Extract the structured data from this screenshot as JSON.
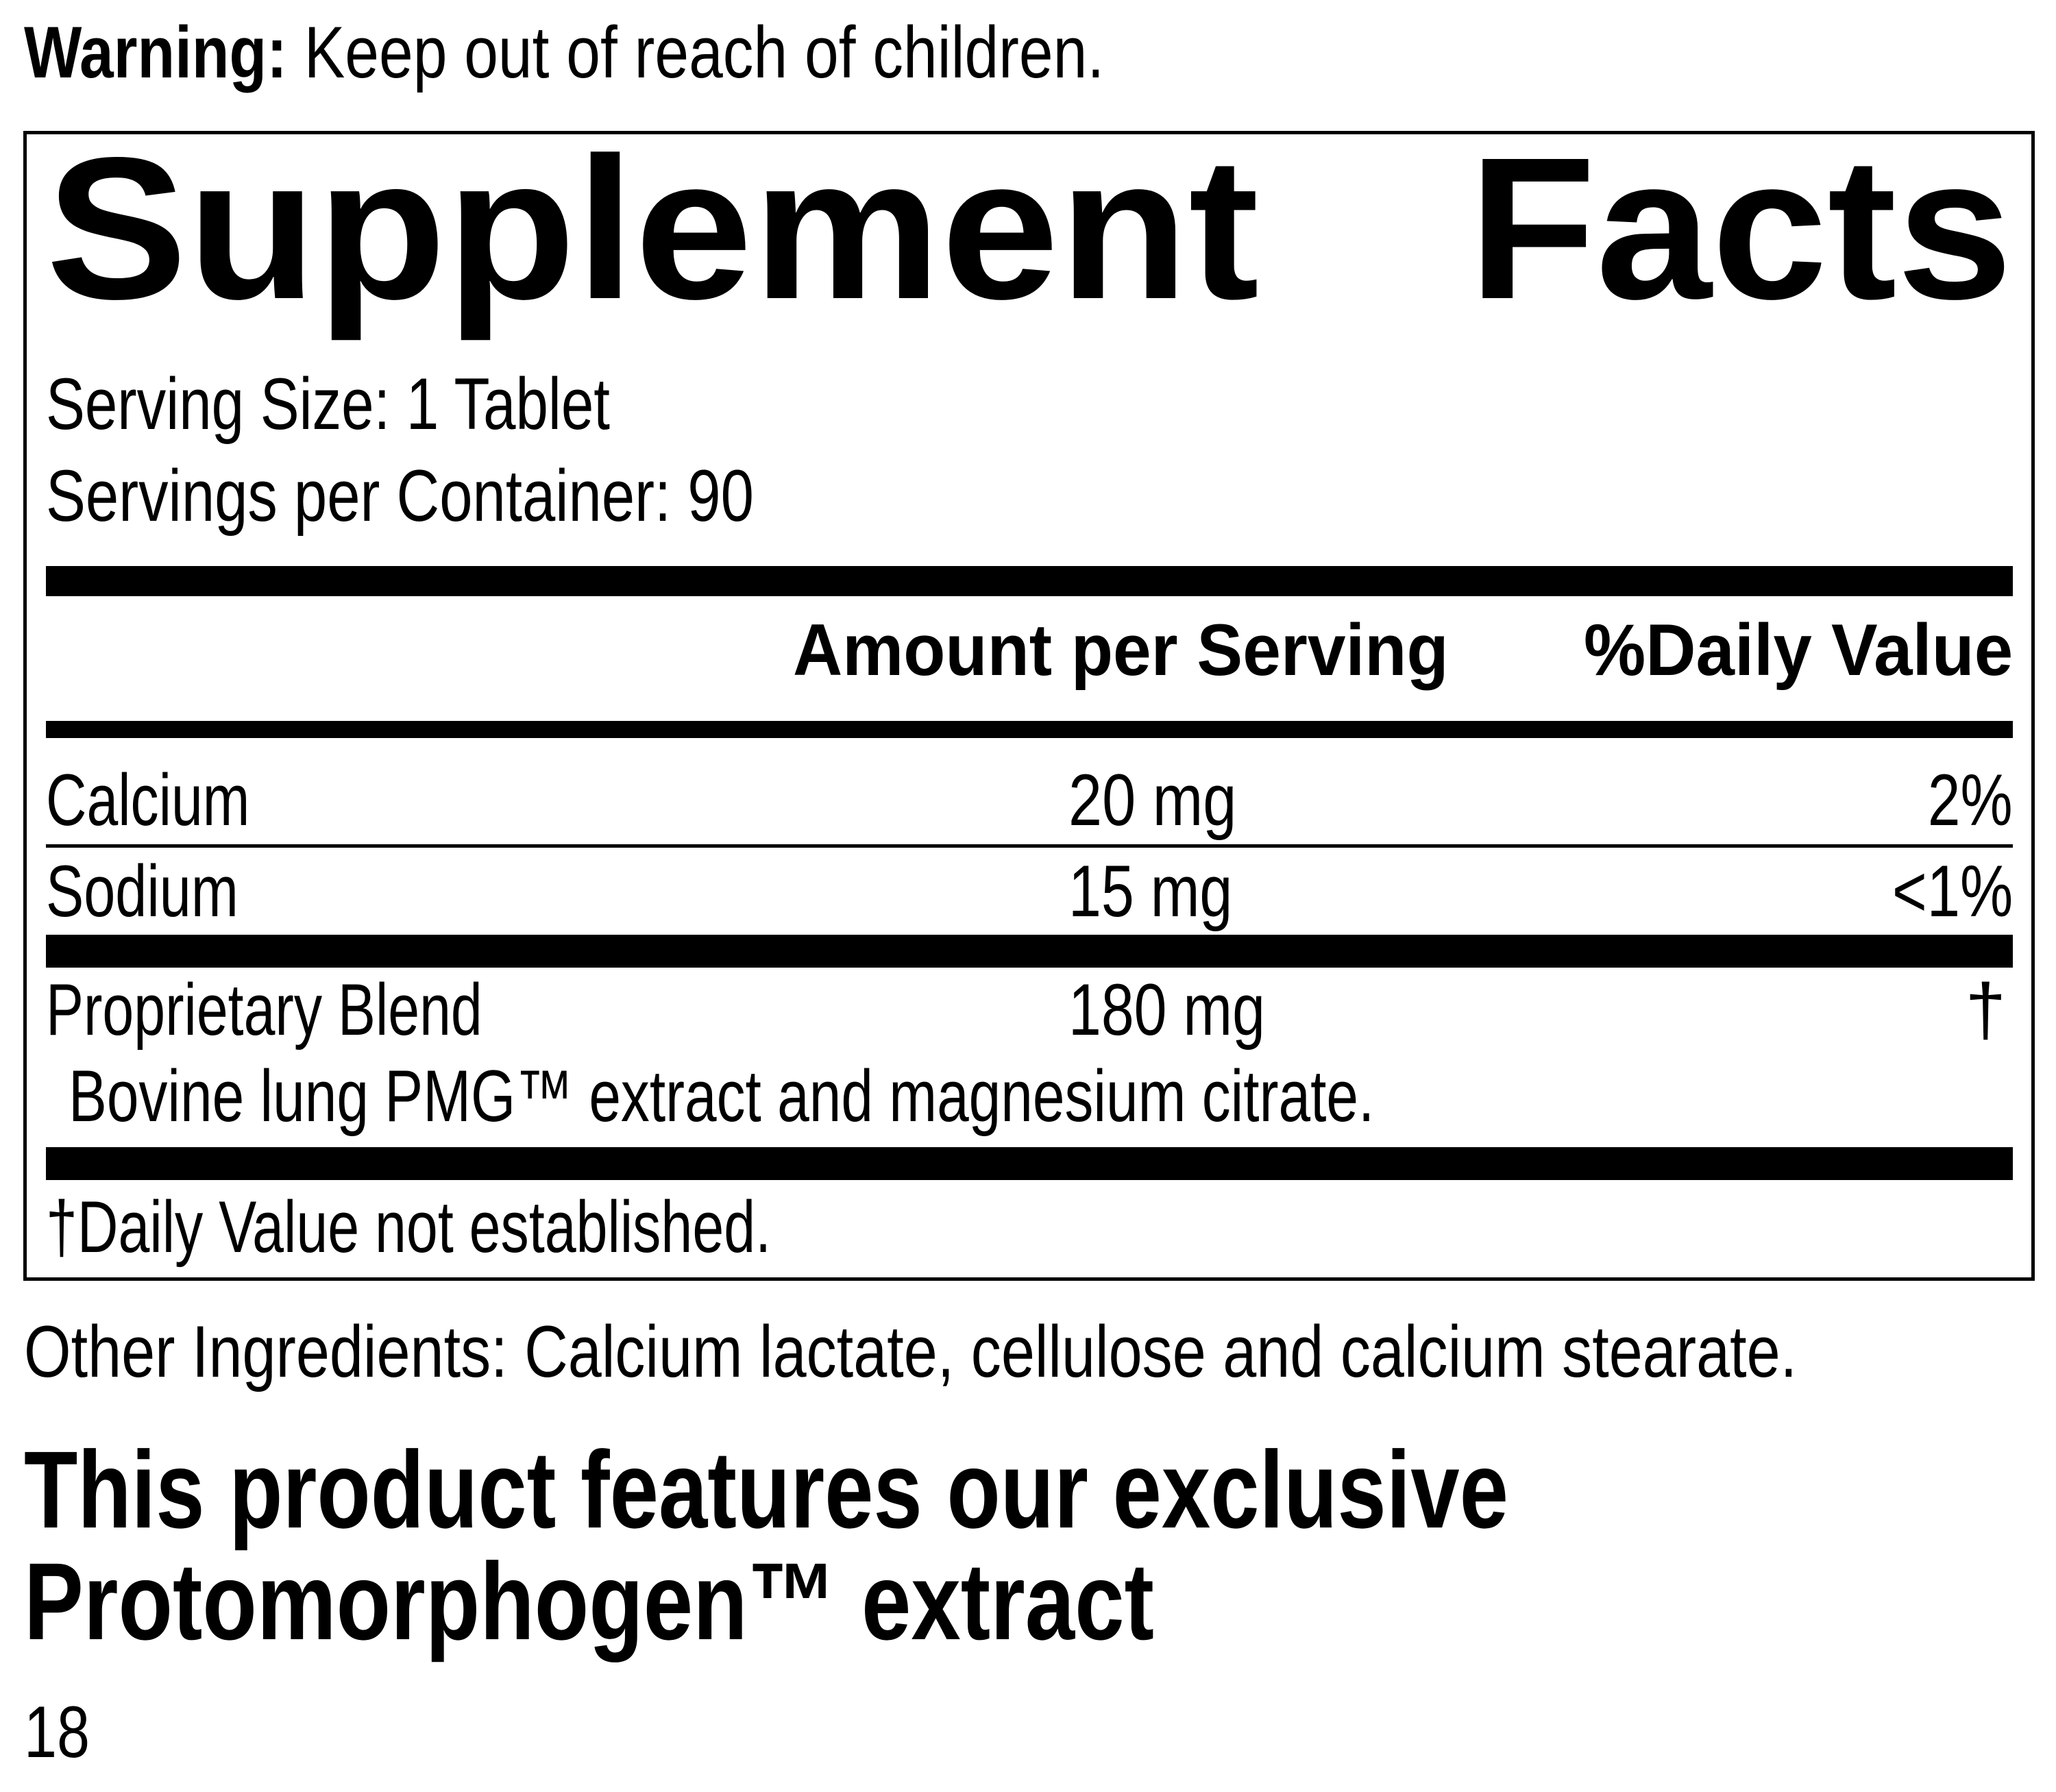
{
  "warning": {
    "label": "Warning:",
    "text": " Keep out of reach of children."
  },
  "facts": {
    "title_left": "Supplement",
    "title_right": "Facts",
    "serving_size": "Serving Size: 1 Tablet",
    "servings_per_container": "Servings per Container: 90",
    "columns": {
      "amount": "Amount per Serving",
      "daily_value": "%Daily Value"
    },
    "rows": [
      {
        "name": "Calcium",
        "amount": "20 mg",
        "dv": "2%"
      },
      {
        "name": "Sodium",
        "amount": "15 mg",
        "dv": "<1%"
      },
      {
        "name": "Proprietary Blend",
        "amount": "180 mg",
        "dv": "†"
      }
    ],
    "blend_ingredients": "Bovine lung PMG™ extract and magnesium citrate.",
    "footnote": "†Daily Value not established."
  },
  "other_ingredients": "Other Ingredients: Calcium lactate, cellulose and calcium stearate.",
  "feature_heading": {
    "line1": "This product features our exclusive",
    "line2": "Protomorphogen™ extract"
  },
  "page_number": "18"
}
